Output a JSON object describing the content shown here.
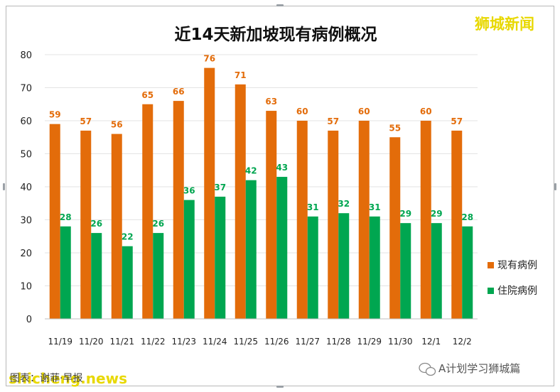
{
  "watermark_top": "狮城新闻",
  "watermark_bottom_left": "shicheng.news",
  "footer_text": "图表：谢菲·早报",
  "wechat_text": "A计划学习狮城篇",
  "colors": {
    "current": "#E36C0A",
    "hospital": "#00A650",
    "watermark": "#E8D800"
  },
  "chart_data": {
    "type": "bar",
    "title": "近14天新加坡现有病例概况",
    "categories": [
      "11/19",
      "11/20",
      "11/21",
      "11/22",
      "11/23",
      "11/24",
      "11/25",
      "11/26",
      "11/27",
      "11/28",
      "11/29",
      "11/30",
      "12/1",
      "12/2"
    ],
    "series": [
      {
        "name": "现有病例",
        "values": [
          59,
          57,
          56,
          65,
          66,
          76,
          71,
          63,
          60,
          57,
          60,
          55,
          60,
          57
        ]
      },
      {
        "name": "住院病例",
        "values": [
          28,
          26,
          22,
          26,
          36,
          37,
          42,
          43,
          31,
          32,
          31,
          29,
          29,
          28
        ]
      }
    ],
    "ylim": [
      0,
      80
    ],
    "yticks": [
      0,
      10,
      20,
      30,
      40,
      50,
      60,
      70,
      80
    ],
    "grid": true,
    "legend": "right"
  }
}
